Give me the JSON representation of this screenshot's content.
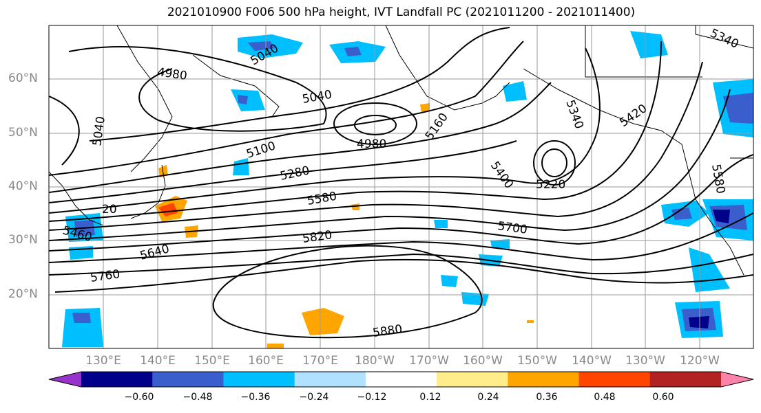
{
  "title": "2021010900 F006 500 hPa height, IVT Landfall PC (2021011200 - 2021011400)",
  "lat_labels": [
    "60°N",
    "50°N",
    "40°N",
    "30°N",
    "20°N"
  ],
  "lon_labels": [
    "130°E",
    "140°E",
    "150°E",
    "160°E",
    "170°E",
    "180°W",
    "170°W",
    "160°W",
    "150°W",
    "140°W",
    "130°W",
    "120°W"
  ],
  "contour_labels": [
    {
      "text": "4980",
      "id": "a"
    },
    {
      "text": "5040",
      "id": "b"
    },
    {
      "text": "5040",
      "id": "c"
    },
    {
      "text": "5040",
      "id": "d"
    },
    {
      "text": "4980",
      "id": "e"
    },
    {
      "text": "5100",
      "id": "f"
    },
    {
      "text": "5160",
      "id": "g"
    },
    {
      "text": "5280",
      "id": "h"
    },
    {
      "text": "5340",
      "id": "i"
    },
    {
      "text": "5220",
      "id": "j"
    },
    {
      "text": "5400",
      "id": "k"
    },
    {
      "text": "5580",
      "id": "l"
    },
    {
      "text": "5700",
      "id": "m"
    },
    {
      "text": "5820",
      "id": "n"
    },
    {
      "text": "5640",
      "id": "o"
    },
    {
      "text": "5760",
      "id": "p"
    },
    {
      "text": "5460",
      "id": "q"
    },
    {
      "text": "5880",
      "id": "r"
    },
    {
      "text": "5340",
      "id": "s"
    },
    {
      "text": "5420",
      "id": "t"
    },
    {
      "text": "5580",
      "id": "u"
    },
    {
      "text": "20",
      "id": "v"
    }
  ],
  "colorbar": {
    "ticks": [
      "−0.60",
      "−0.48",
      "−0.36",
      "−0.24",
      "−0.12",
      "0.12",
      "0.24",
      "0.36",
      "0.48",
      "0.60"
    ],
    "colors": [
      "#9932cc",
      "#00008b",
      "#3a5fcd",
      "#00bfff",
      "#b0e2ff",
      "#ffffff",
      "#ffec8b",
      "#ffa500",
      "#ff4500",
      "#b22222",
      "#ff82ab"
    ]
  }
}
